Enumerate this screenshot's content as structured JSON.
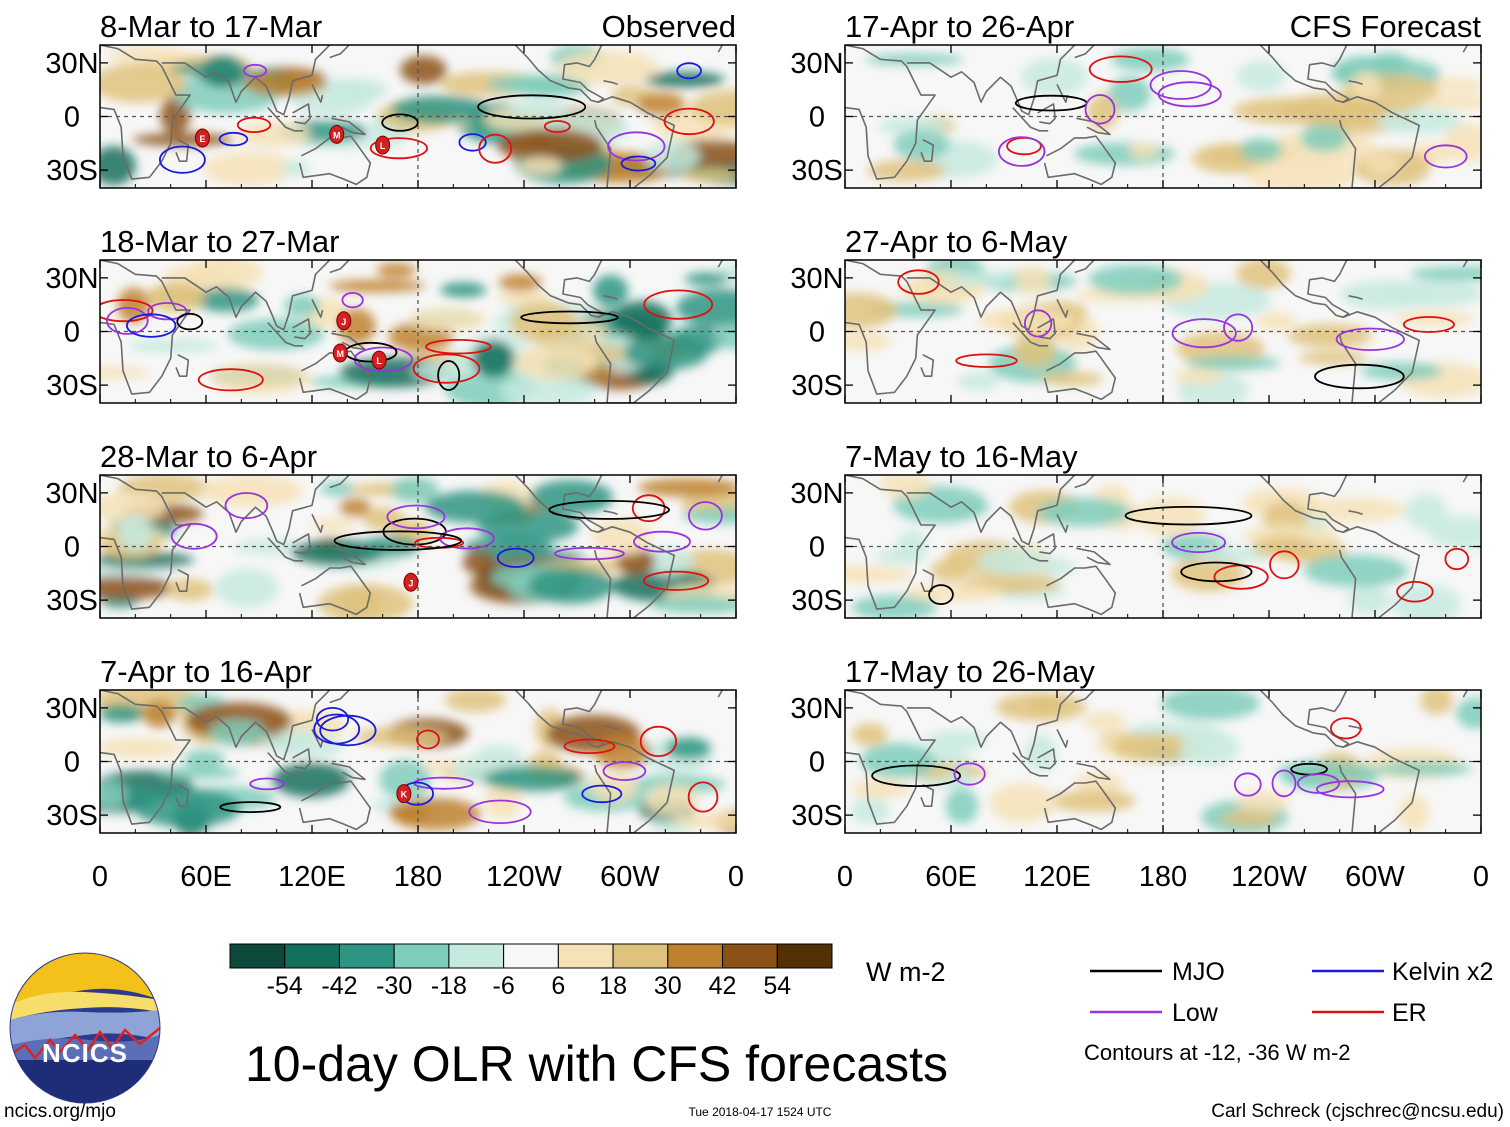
{
  "chart_data": {
    "type": "heatmap",
    "title": "10-day OLR with CFS forecasts",
    "units": "W m-2",
    "columns": [
      {
        "label": "Observed",
        "panels": [
          "8-Mar to 17-Mar",
          "18-Mar to 27-Mar",
          "28-Mar to 6-Apr",
          "7-Apr to 16-Apr"
        ]
      },
      {
        "label": "CFS Forecast",
        "panels": [
          "17-Apr to 26-Apr",
          "27-Apr to 6-May",
          "7-May to 16-May",
          "17-May to 26-May"
        ]
      }
    ],
    "lat_ticks": [
      "30N",
      "0",
      "30S"
    ],
    "lon_ticks": [
      "0",
      "60E",
      "120E",
      "180",
      "120W",
      "60W",
      "0"
    ],
    "colorbar": {
      "ticks": [
        "-54",
        "-42",
        "-30",
        "-18",
        "-6",
        "6",
        "18",
        "30",
        "42",
        "54"
      ],
      "colors": [
        "#0d4a3c",
        "#14705e",
        "#2e9583",
        "#7fcdbb",
        "#c7eae0",
        "#f7f7f7",
        "#f6e2b6",
        "#dfc27d",
        "#bf812d",
        "#8c5117",
        "#543005"
      ]
    },
    "legend": [
      {
        "label": "MJO",
        "color": "#000000"
      },
      {
        "label": "Kelvin x2",
        "color": "#1a1adf"
      },
      {
        "label": "Low",
        "color": "#9933dd"
      },
      {
        "label": "ER",
        "color": "#dd1111"
      }
    ],
    "contour_note": "Contours at -12, -36 W m-2",
    "storm_markers": [
      "E",
      "M",
      "L",
      "J",
      "K"
    ]
  },
  "footer": {
    "left": "ncics.org/mjo",
    "center": "Tue 2018-04-17 1524 UTC",
    "right": "Carl Schreck (cjschrec@ncsu.edu)"
  },
  "logo": {
    "text": "NCICS"
  }
}
